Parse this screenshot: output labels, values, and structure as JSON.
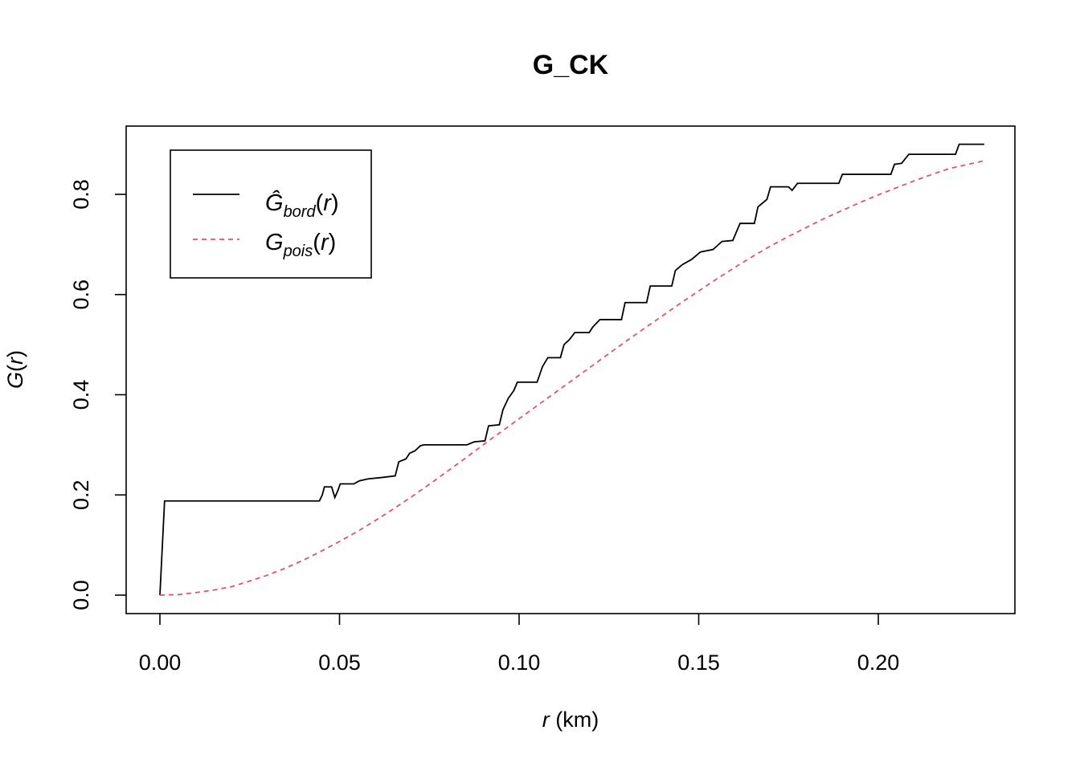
{
  "chart_data": {
    "type": "line",
    "title": "G_CK",
    "xlabel": {
      "var": "r",
      "unit": " (km)"
    },
    "ylabel": {
      "fn": "G",
      "var": "r"
    },
    "xlim": [
      0.0,
      0.23
    ],
    "ylim": [
      0.0,
      0.9
    ],
    "x_ticks": [
      "0.00",
      "0.05",
      "0.10",
      "0.15",
      "0.20"
    ],
    "y_ticks": [
      "0.0",
      "0.2",
      "0.4",
      "0.6",
      "0.8"
    ],
    "grid": false,
    "legend_position": "top-left",
    "series": [
      {
        "name": "Ĝbord(r)",
        "label_main": "Ĝ",
        "label_sub": "bord",
        "color": "#000000",
        "dash": "solid",
        "step": true,
        "points": [
          [
            0.0,
            0.0
          ],
          [
            0.0013,
            0.188
          ],
          [
            0.0444,
            0.188
          ],
          [
            0.0452,
            0.2
          ],
          [
            0.0458,
            0.216
          ],
          [
            0.0478,
            0.216
          ],
          [
            0.0487,
            0.195
          ],
          [
            0.0495,
            0.208
          ],
          [
            0.0502,
            0.222
          ],
          [
            0.054,
            0.222
          ],
          [
            0.0555,
            0.228
          ],
          [
            0.058,
            0.232
          ],
          [
            0.062,
            0.235
          ],
          [
            0.0655,
            0.238
          ],
          [
            0.0665,
            0.266
          ],
          [
            0.0685,
            0.272
          ],
          [
            0.0695,
            0.283
          ],
          [
            0.071,
            0.288
          ],
          [
            0.0725,
            0.298
          ],
          [
            0.0735,
            0.3
          ],
          [
            0.0855,
            0.3
          ],
          [
            0.0875,
            0.306
          ],
          [
            0.0905,
            0.308
          ],
          [
            0.0915,
            0.338
          ],
          [
            0.0945,
            0.34
          ],
          [
            0.0955,
            0.37
          ],
          [
            0.097,
            0.393
          ],
          [
            0.0985,
            0.408
          ],
          [
            0.0995,
            0.425
          ],
          [
            0.105,
            0.425
          ],
          [
            0.1065,
            0.456
          ],
          [
            0.108,
            0.474
          ],
          [
            0.1115,
            0.474
          ],
          [
            0.1125,
            0.5
          ],
          [
            0.114,
            0.51
          ],
          [
            0.1155,
            0.524
          ],
          [
            0.1195,
            0.524
          ],
          [
            0.1205,
            0.535
          ],
          [
            0.1225,
            0.55
          ],
          [
            0.1285,
            0.55
          ],
          [
            0.1295,
            0.584
          ],
          [
            0.1355,
            0.584
          ],
          [
            0.1365,
            0.617
          ],
          [
            0.1425,
            0.617
          ],
          [
            0.1435,
            0.648
          ],
          [
            0.1455,
            0.66
          ],
          [
            0.148,
            0.67
          ],
          [
            0.1505,
            0.685
          ],
          [
            0.154,
            0.69
          ],
          [
            0.1565,
            0.706
          ],
          [
            0.1595,
            0.708
          ],
          [
            0.1615,
            0.742
          ],
          [
            0.1655,
            0.742
          ],
          [
            0.1665,
            0.775
          ],
          [
            0.169,
            0.79
          ],
          [
            0.17,
            0.815
          ],
          [
            0.175,
            0.815
          ],
          [
            0.176,
            0.808
          ],
          [
            0.1775,
            0.822
          ],
          [
            0.189,
            0.822
          ],
          [
            0.19,
            0.84
          ],
          [
            0.2035,
            0.84
          ],
          [
            0.2045,
            0.86
          ],
          [
            0.2065,
            0.862
          ],
          [
            0.2085,
            0.88
          ],
          [
            0.2215,
            0.88
          ],
          [
            0.2225,
            0.9
          ],
          [
            0.2295,
            0.9
          ]
        ]
      },
      {
        "name": "Gpois(r)",
        "label_main": "G",
        "label_sub": "pois",
        "color": "#DF536B",
        "dash": "dashed",
        "step": false,
        "points": [
          [
            0.0,
            0.0
          ],
          [
            0.005,
            0.001
          ],
          [
            0.01,
            0.005
          ],
          [
            0.015,
            0.01
          ],
          [
            0.02,
            0.017
          ],
          [
            0.025,
            0.028
          ],
          [
            0.03,
            0.04
          ],
          [
            0.035,
            0.054
          ],
          [
            0.04,
            0.07
          ],
          [
            0.045,
            0.088
          ],
          [
            0.05,
            0.107
          ],
          [
            0.055,
            0.127
          ],
          [
            0.06,
            0.149
          ],
          [
            0.065,
            0.172
          ],
          [
            0.07,
            0.196
          ],
          [
            0.075,
            0.221
          ],
          [
            0.08,
            0.247
          ],
          [
            0.085,
            0.273
          ],
          [
            0.09,
            0.3
          ],
          [
            0.095,
            0.326
          ],
          [
            0.1,
            0.352
          ],
          [
            0.105,
            0.378
          ],
          [
            0.11,
            0.404
          ],
          [
            0.115,
            0.43
          ],
          [
            0.12,
            0.456
          ],
          [
            0.125,
            0.482
          ],
          [
            0.13,
            0.508
          ],
          [
            0.135,
            0.533
          ],
          [
            0.14,
            0.558
          ],
          [
            0.145,
            0.583
          ],
          [
            0.15,
            0.607
          ],
          [
            0.155,
            0.631
          ],
          [
            0.16,
            0.654
          ],
          [
            0.165,
            0.676
          ],
          [
            0.17,
            0.697
          ],
          [
            0.175,
            0.716
          ],
          [
            0.18,
            0.734
          ],
          [
            0.185,
            0.752
          ],
          [
            0.19,
            0.768
          ],
          [
            0.195,
            0.784
          ],
          [
            0.2,
            0.799
          ],
          [
            0.205,
            0.813
          ],
          [
            0.21,
            0.827
          ],
          [
            0.215,
            0.84
          ],
          [
            0.22,
            0.852
          ],
          [
            0.2295,
            0.867
          ]
        ]
      }
    ]
  }
}
